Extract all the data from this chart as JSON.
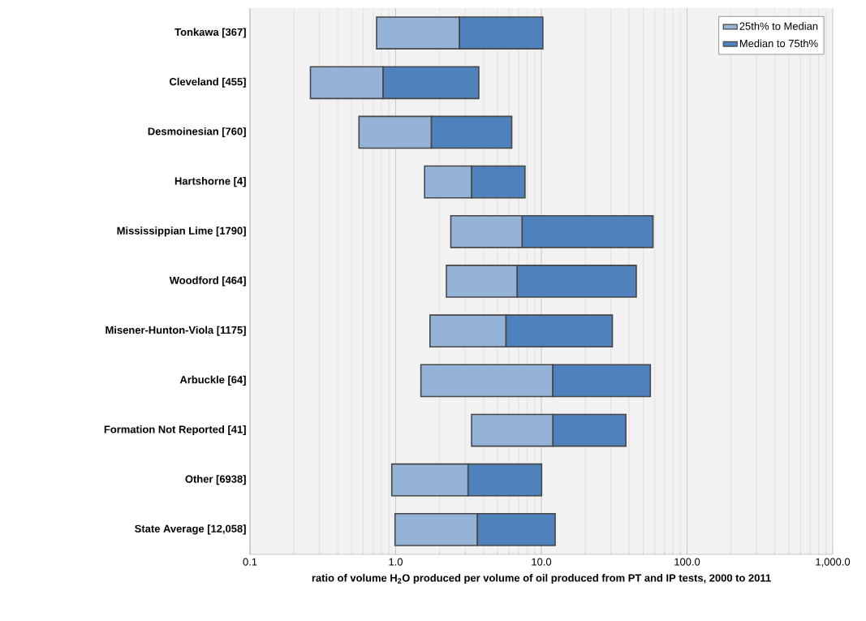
{
  "chart_data": {
    "type": "bar",
    "orientation": "horizontal",
    "log": "x",
    "categories": [
      "Tonkawa [367]",
      "Cleveland [455]",
      "Desmoinesian [760]",
      "Hartshorne [4]",
      "Mississippian Lime [1790]",
      "Woodford [464]",
      "Misener-Hunton-Viola [1175]",
      "Arbuckle [64]",
      "Formation Not Reported [41]",
      "Other [6938]",
      "State Average [12,058]"
    ],
    "series": [
      {
        "name": "25th% to Median",
        "color": "#95b3d7",
        "base": [
          0.74,
          0.26,
          0.56,
          1.58,
          2.39,
          2.23,
          1.72,
          1.49,
          3.32,
          0.94,
          0.99
        ],
        "values": [
          2.0,
          0.56,
          1.2,
          1.74,
          5.0,
          4.6,
          4.0,
          10.5,
          8.7,
          2.2,
          2.65
        ]
      },
      {
        "name": "Median to 75th%",
        "color": "#4f81bd",
        "base": [
          2.74,
          0.82,
          1.76,
          3.32,
          7.39,
          6.83,
          5.72,
          11.99,
          12.02,
          3.14,
          3.64
        ],
        "values": [
          7.5,
          2.9,
          4.5,
          4.4,
          51,
          38,
          25,
          44,
          26,
          6.9,
          8.8
        ]
      }
    ],
    "xlim": [
      0.1,
      1000
    ],
    "xticks": [
      {
        "value": 0.1,
        "label": "0.1"
      },
      {
        "value": 1,
        "label": "1.0"
      },
      {
        "value": 10,
        "label": "10.0"
      },
      {
        "value": 100,
        "label": "100.0"
      },
      {
        "value": 1000,
        "label": "1,000.0"
      }
    ],
    "xlabel": "ratio of volume H$_{2}$O produced per volume of oil produced from PT and IP tests, 2000 to 2011",
    "grid": "x",
    "legend": "top right"
  }
}
